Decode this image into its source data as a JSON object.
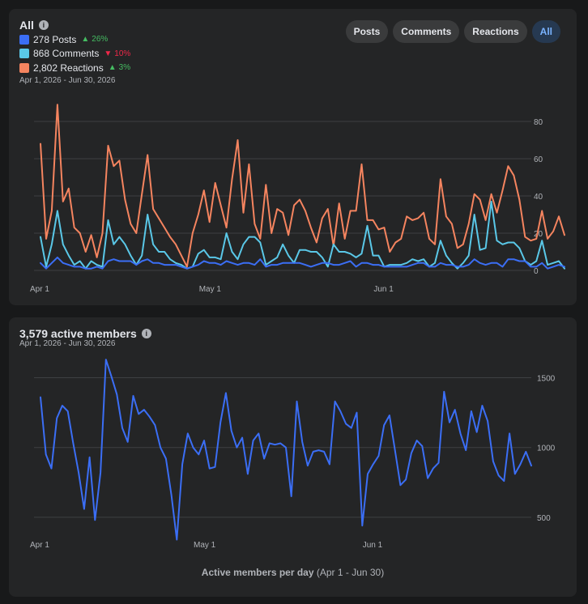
{
  "card1": {
    "title": "All",
    "info_icon": "info-icon",
    "legend": [
      {
        "count": "278 Posts",
        "color": "#3b6ef5",
        "change": "26%",
        "dir": "up"
      },
      {
        "count": "868 Comments",
        "color": "#5ac8e8",
        "change": "10%",
        "dir": "down"
      },
      {
        "count": "2,802 Reactions",
        "color": "#f5845f",
        "change": "3%",
        "dir": "up"
      }
    ],
    "date_range": "Apr 1, 2026 - Jun 30, 2026",
    "buttons": [
      "Posts",
      "Comments",
      "Reactions",
      "All"
    ],
    "active_button": "All"
  },
  "card2": {
    "title": "3,579 active members",
    "info_icon": "info-icon",
    "date_range": "Apr 1, 2026 - Jun 30, 2026",
    "footer_bold": "Active members per day",
    "footer_rest": " (Apr 1 - Jun 30)"
  },
  "chart_data": [
    {
      "type": "line",
      "x_ticks": [
        "Apr 1",
        "May 1",
        "Jun 1"
      ],
      "x_tick_days": [
        0,
        30,
        61
      ],
      "ylim": [
        0,
        90
      ],
      "y_ticks": [
        0,
        20,
        40,
        60,
        80
      ],
      "grid": true,
      "series": [
        {
          "name": "Reactions",
          "color": "#f5845f",
          "values": [
            68,
            17,
            32,
            89,
            37,
            44,
            23,
            20,
            10,
            19,
            7,
            20,
            67,
            56,
            59,
            38,
            25,
            20,
            41,
            62,
            33,
            28,
            23,
            18,
            14,
            8,
            2,
            20,
            30,
            43,
            26,
            47,
            35,
            23,
            49,
            70,
            31,
            57,
            25,
            17,
            46,
            20,
            33,
            31,
            19,
            35,
            38,
            32,
            23,
            15,
            28,
            33,
            13,
            36,
            17,
            32,
            32,
            57,
            27,
            27,
            22,
            23,
            10,
            15,
            17,
            29,
            27,
            28,
            31,
            17,
            14,
            49,
            29,
            25,
            12,
            14,
            25,
            41,
            38,
            27,
            41,
            31,
            43,
            56,
            51,
            38,
            18,
            16,
            17,
            32,
            17,
            21,
            29,
            19
          ]
        },
        {
          "name": "Comments",
          "color": "#5ac8e8",
          "values": [
            18,
            2,
            14,
            32,
            14,
            8,
            3,
            5,
            1,
            5,
            3,
            2,
            27,
            14,
            18,
            14,
            8,
            3,
            8,
            30,
            14,
            10,
            10,
            6,
            4,
            3,
            1,
            2,
            9,
            11,
            7,
            7,
            6,
            20,
            10,
            6,
            14,
            18,
            18,
            15,
            3,
            5,
            7,
            14,
            8,
            4,
            11,
            11,
            10,
            10,
            7,
            2,
            14,
            10,
            10,
            9,
            7,
            9,
            24,
            8,
            8,
            2,
            3,
            3,
            3,
            4,
            6,
            5,
            6,
            2,
            4,
            16,
            8,
            4,
            1,
            4,
            8,
            30,
            11,
            12,
            37,
            16,
            14,
            15,
            15,
            12,
            5,
            3,
            5,
            16,
            3,
            4,
            5,
            1
          ]
        },
        {
          "name": "Posts",
          "color": "#3b6ef5",
          "values": [
            4,
            1,
            4,
            7,
            4,
            3,
            2,
            2,
            1,
            1,
            2,
            1,
            5,
            6,
            5,
            5,
            5,
            3,
            5,
            6,
            4,
            4,
            3,
            3,
            3,
            2,
            1,
            2,
            3,
            5,
            4,
            4,
            3,
            5,
            4,
            3,
            4,
            4,
            3,
            6,
            2,
            3,
            3,
            4,
            4,
            4,
            4,
            3,
            2,
            3,
            4,
            4,
            3,
            3,
            4,
            5,
            2,
            4,
            4,
            3,
            3,
            2,
            2,
            2,
            2,
            2,
            3,
            4,
            4,
            2,
            2,
            4,
            3,
            3,
            2,
            2,
            3,
            6,
            4,
            3,
            4,
            4,
            2,
            6,
            6,
            5,
            5,
            2,
            2,
            4,
            1,
            2,
            3,
            2
          ]
        }
      ]
    },
    {
      "type": "line",
      "x_ticks": [
        "Apr 1",
        "May 1",
        "Jun 1"
      ],
      "x_tick_days": [
        0,
        30,
        61
      ],
      "ylim": [
        250,
        1700
      ],
      "y_ticks": [
        500,
        1000,
        1500
      ],
      "grid": true,
      "series": [
        {
          "name": "Active members",
          "color": "#3b6ef5",
          "values": [
            1360,
            950,
            850,
            1210,
            1300,
            1260,
            1030,
            820,
            560,
            930,
            480,
            820,
            1630,
            1510,
            1380,
            1140,
            1040,
            1370,
            1240,
            1270,
            1220,
            1160,
            1000,
            920,
            660,
            340,
            880,
            1100,
            1000,
            950,
            1050,
            850,
            860,
            1180,
            1390,
            1120,
            1000,
            1070,
            810,
            1050,
            1100,
            920,
            1030,
            1020,
            1030,
            1000,
            650,
            1330,
            1040,
            870,
            970,
            980,
            970,
            880,
            1330,
            1260,
            1170,
            1140,
            1250,
            440,
            810,
            880,
            940,
            1160,
            1230,
            980,
            730,
            770,
            960,
            1050,
            1010,
            780,
            850,
            890,
            1400,
            1180,
            1270,
            1100,
            980,
            1260,
            1110,
            1300,
            1190,
            900,
            800,
            760,
            1100,
            810,
            880,
            970,
            870
          ]
        }
      ]
    }
  ]
}
